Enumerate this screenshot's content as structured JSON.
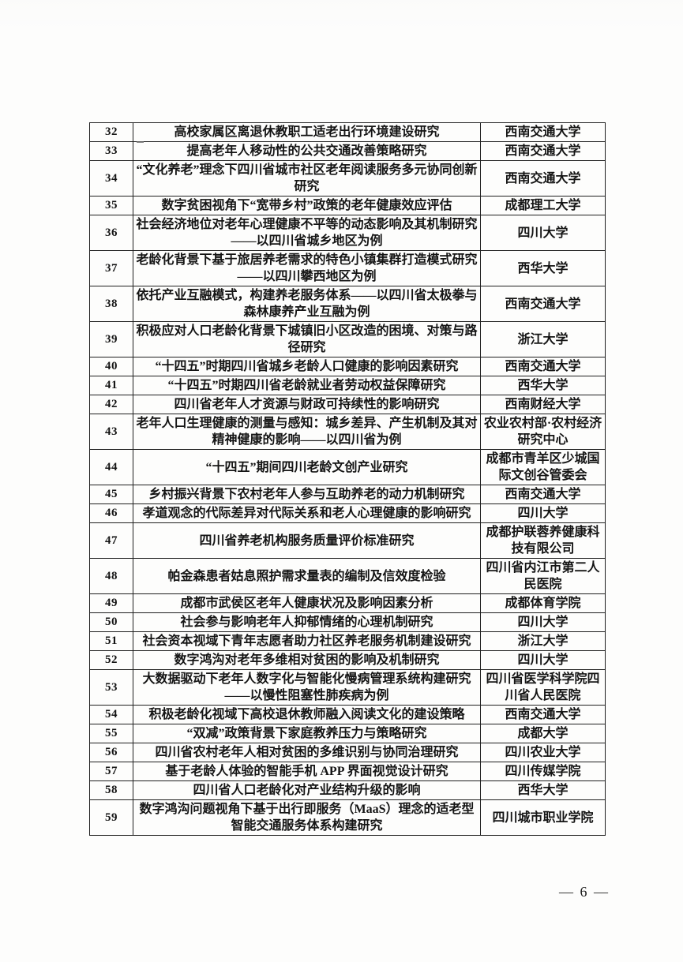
{
  "document": {
    "footer": {
      "page_number": "— 6 —"
    },
    "table": {
      "rows": [
        {
          "no": "32",
          "title": "高校家属区离退休教职工适老出行环境建设研究",
          "institution": "西南交通大学"
        },
        {
          "no": "33",
          "title": "提高老年人移动性的公共交通改善策略研究",
          "institution": "西南交通大学"
        },
        {
          "no": "34",
          "title": "“文化养老”理念下四川省城市社区老年阅读服务多元协同创新研究",
          "institution": "西南交通大学"
        },
        {
          "no": "35",
          "title": "数字贫困视角下“宽带乡村”政策的老年健康效应评估",
          "institution": "成都理工大学"
        },
        {
          "no": "36",
          "title": "社会经济地位对老年心理健康不平等的动态影响及其机制研究——以四川省城乡地区为例",
          "institution": "四川大学"
        },
        {
          "no": "37",
          "title": "老龄化背景下基于旅居养老需求的特色小镇集群打造模式研究——以四川攀西地区为例",
          "institution": "西华大学"
        },
        {
          "no": "38",
          "title": "依托产业互融模式，构建养老服务体系——以四川省太极拳与森林康养产业互融为例",
          "institution": "西南交通大学"
        },
        {
          "no": "39",
          "title": "积极应对人口老龄化背景下城镇旧小区改造的困境、对策与路径研究",
          "institution": "浙江大学"
        },
        {
          "no": "40",
          "title": "“十四五”时期四川省城乡老龄人口健康的影响因素研究",
          "institution": "西南交通大学"
        },
        {
          "no": "41",
          "title": "“十四五”时期四川省老龄就业者劳动权益保障研究",
          "institution": "西华大学"
        },
        {
          "no": "42",
          "title": "四川省老年人才资源与财政可持续性的影响研究",
          "institution": "西南财经大学"
        },
        {
          "no": "43",
          "title": "老年人口生理健康的测量与感知：城乡差异、产生机制及其对精神健康的影响——以四川省为例",
          "institution": "农业农村部·农村经济研究中心"
        },
        {
          "no": "44",
          "title": "“十四五”期间四川老龄文创产业研究",
          "institution": "成都市青羊区少城国际文创谷管委会"
        },
        {
          "no": "45",
          "title": "乡村振兴背景下农村老年人参与互助养老的动力机制研究",
          "institution": "西南交通大学"
        },
        {
          "no": "46",
          "title": "孝道观念的代际差异对代际关系和老人心理健康的影响研究",
          "institution": "四川大学"
        },
        {
          "no": "47",
          "title": "四川省养老机构服务质量评价标准研究",
          "institution": "成都护联蓉养健康科技有限公司"
        },
        {
          "no": "48",
          "title": "帕金森患者姑息照护需求量表的编制及信效度检验",
          "institution": "四川省内江市第二人民医院"
        },
        {
          "no": "49",
          "title": "成都市武侯区老年人健康状况及影响因素分析",
          "institution": "成都体育学院"
        },
        {
          "no": "50",
          "title": "社会参与影响老年人抑郁情绪的心理机制研究",
          "institution": "四川大学"
        },
        {
          "no": "51",
          "title": "社会资本视域下青年志愿者助力社区养老服务机制建设研究",
          "institution": "浙江大学"
        },
        {
          "no": "52",
          "title": "数字鸿沟对老年多维相对贫困的影响及机制研究",
          "institution": "四川大学"
        },
        {
          "no": "53",
          "title": "大数据驱动下老年人数字化与智能化慢病管理系统构建研究——以慢性阻塞性肺疾病为例",
          "institution": "四川省医学科学院四川省人民医院"
        },
        {
          "no": "54",
          "title": "积极老龄化视域下高校退休教师融入阅读文化的建设策略",
          "institution": "西南交通大学"
        },
        {
          "no": "55",
          "title": "“双减”政策背景下家庭教养压力与策略研究",
          "institution": "成都大学"
        },
        {
          "no": "56",
          "title": "四川省农村老年人相对贫困的多维识别与协同治理研究",
          "institution": "四川农业大学"
        },
        {
          "no": "57",
          "title": "基于老龄人体验的智能手机 APP 界面视觉设计研究",
          "institution": "四川传媒学院"
        },
        {
          "no": "58",
          "title": "四川省人口老龄化对产业结构升级的影响",
          "institution": "西华大学"
        },
        {
          "no": "59",
          "title": "数字鸿沟问题视角下基于出行即服务（MaaS）理念的适老型智能交通服务体系构建研究",
          "institution": "四川城市职业学院"
        }
      ]
    }
  }
}
